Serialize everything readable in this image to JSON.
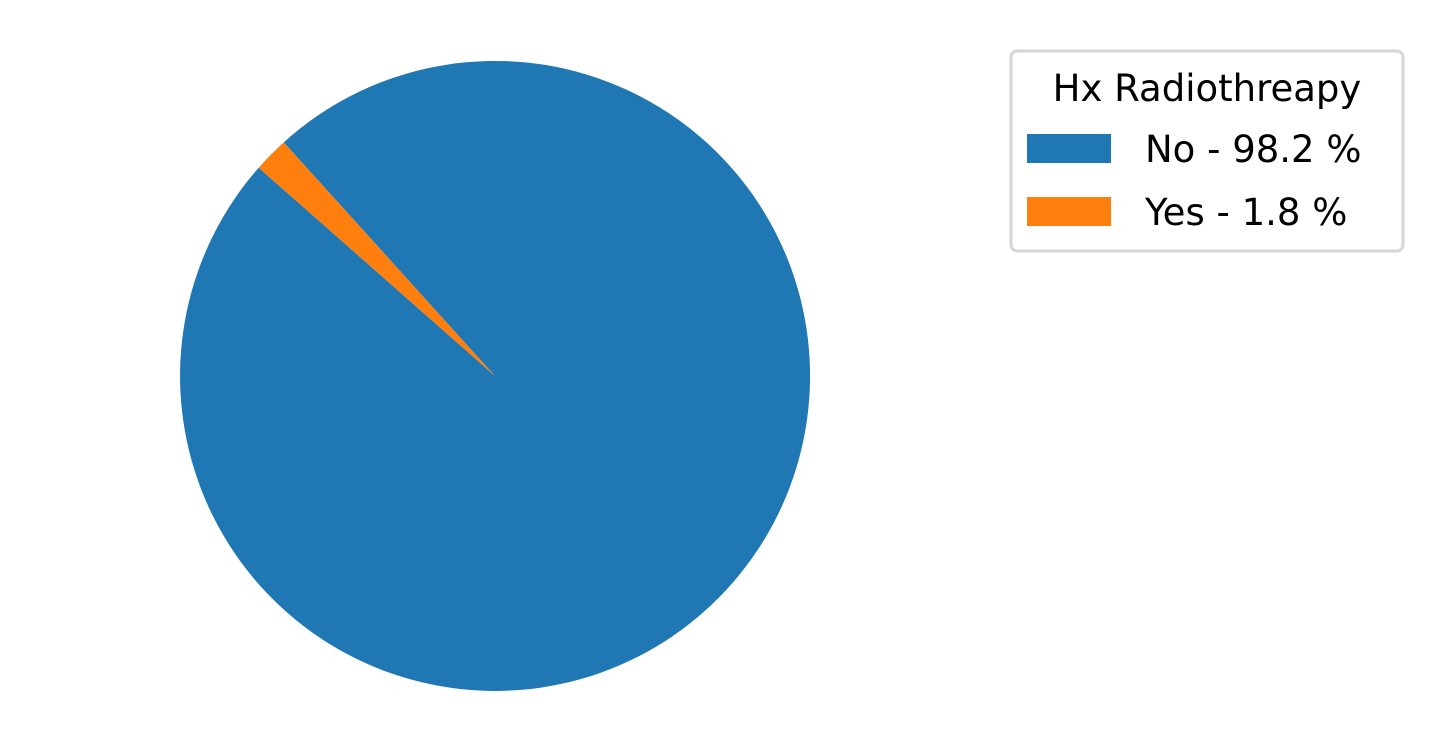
{
  "chart_data": {
    "type": "pie",
    "title": "",
    "legend": {
      "title": "Hx Radiothreapy",
      "placement": "top-right"
    },
    "slices": [
      {
        "category": "No",
        "label": "No - 98.2 %",
        "value": 98.2,
        "color": "#1f77b4"
      },
      {
        "category": "Yes",
        "label": "Yes - 1.8 %",
        "value": 1.8,
        "color": "#ff7f0e"
      }
    ],
    "start_angle_deg": 138.6,
    "direction": "counterclockwise"
  }
}
